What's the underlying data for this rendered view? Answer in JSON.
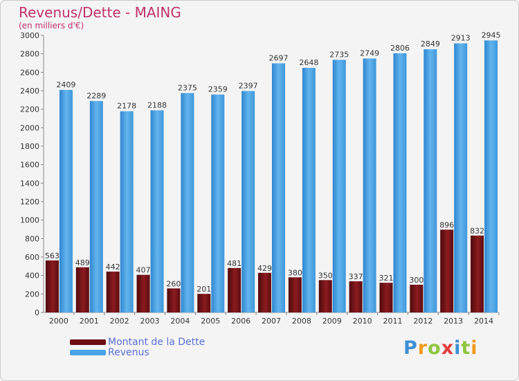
{
  "header": {
    "title": "Revenus/Dette - MAING",
    "subtitle": "(en milliers d'€)"
  },
  "colors": {
    "dette": "#7a0f14",
    "revenus": "#4aa3e6",
    "title": "#c0306b",
    "legend_text": "#5a70d6"
  },
  "legend": {
    "items": [
      {
        "label": "Montant de la Dette",
        "color": "#6b0d12"
      },
      {
        "label": "Revenus",
        "color": "#4aa3e6"
      }
    ]
  },
  "brand": {
    "letters": [
      "P",
      "r",
      "o",
      "x",
      "i",
      "t",
      "i"
    ],
    "letter_colors": [
      "#3d8fd4",
      "#f39a1c",
      "#8ec63f",
      "#e23b3b",
      "#3d8fd4",
      "#8ec63f",
      "#f39a1c"
    ]
  },
  "chart_data": {
    "type": "bar",
    "title": "Revenus/Dette - MAING",
    "subtitle": "(en milliers d'€)",
    "xlabel": "",
    "ylabel": "",
    "categories": [
      "2000",
      "2001",
      "2002",
      "2003",
      "2004",
      "2005",
      "2006",
      "2007",
      "2008",
      "2009",
      "2010",
      "2011",
      "2012",
      "2013",
      "2014"
    ],
    "series": [
      {
        "name": "Montant de la Dette",
        "values": [
          563,
          489,
          442,
          407,
          260,
          201,
          481,
          429,
          380,
          350,
          337,
          321,
          300,
          896,
          832
        ]
      },
      {
        "name": "Revenus",
        "values": [
          2409,
          2289,
          2178,
          2188,
          2375,
          2359,
          2397,
          2697,
          2648,
          2735,
          2749,
          2806,
          2849,
          2913,
          2945
        ]
      }
    ],
    "ylim": [
      0,
      3000
    ],
    "yticks": [
      0,
      200,
      400,
      600,
      800,
      1000,
      1200,
      1400,
      1600,
      1800,
      2000,
      2200,
      2400,
      2600,
      2800,
      3000
    ],
    "grid": false,
    "legend_position": "bottom-left"
  }
}
